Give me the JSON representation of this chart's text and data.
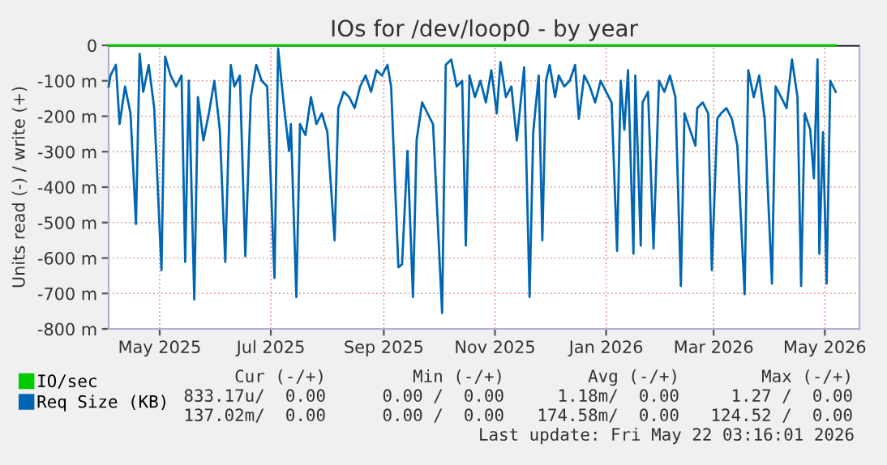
{
  "chart_data": {
    "type": "line",
    "title": "IOs for /dev/loop0 - by year",
    "ylabel": "Units read (-) / write (+)",
    "xlim": [
      "2025-04-03",
      "2026-05-20"
    ],
    "xticks": [
      {
        "value": "2025-05-01",
        "label": "May 2025"
      },
      {
        "value": "2025-07-01",
        "label": "Jul 2025"
      },
      {
        "value": "2025-09-01",
        "label": "Sep 2025"
      },
      {
        "value": "2025-11-01",
        "label": "Nov 2025"
      },
      {
        "value": "2026-01-01",
        "label": "Jan 2026"
      },
      {
        "value": "2026-03-01",
        "label": "Mar 2026"
      },
      {
        "value": "2026-05-01",
        "label": "May 2026"
      }
    ],
    "ylim": [
      -800,
      0
    ],
    "yticks": [
      0,
      {
        "value": -100,
        "label": "-100 m"
      },
      {
        "value": -200,
        "label": "-200 m"
      },
      {
        "value": -300,
        "label": "-300 m"
      },
      {
        "value": -400,
        "label": "-400 m"
      },
      {
        "value": -500,
        "label": "-500 m"
      },
      {
        "value": -600,
        "label": "-600 m"
      },
      {
        "value": -700,
        "label": "-700 m"
      },
      {
        "value": -800,
        "label": "-800 m"
      }
    ],
    "grid": true,
    "legend": "bottom",
    "marker": "none",
    "line_style": "solid",
    "ref_lines": [
      {
        "axis": "y",
        "value": 0,
        "color": "#000000"
      }
    ],
    "series": [
      {
        "name": "IO/sec",
        "color": "#00cc00",
        "x": [
          "2025-04-03",
          "2026-05-07"
        ],
        "values": [
          0,
          0
        ]
      },
      {
        "name": "Req Size (KB)",
        "color": "#0066b3",
        "x": [
          "2025-04-03",
          "2025-04-04",
          "2025-04-07",
          "2025-04-09",
          "2025-04-12",
          "2025-04-15",
          "2025-04-18",
          "2025-04-20",
          "2025-04-22",
          "2025-04-25",
          "2025-04-28",
          "2025-05-02",
          "2025-05-04",
          "2025-05-07",
          "2025-05-10",
          "2025-05-13",
          "2025-05-15",
          "2025-05-17",
          "2025-05-20",
          "2025-05-22",
          "2025-05-25",
          "2025-05-28",
          "2025-05-31",
          "2025-06-03",
          "2025-06-06",
          "2025-06-09",
          "2025-06-11",
          "2025-06-14",
          "2025-06-17",
          "2025-06-20",
          "2025-06-23",
          "2025-06-26",
          "2025-06-29",
          "2025-07-03",
          "2025-07-05",
          "2025-07-08",
          "2025-07-11",
          "2025-07-12",
          "2025-07-15",
          "2025-07-17",
          "2025-07-20",
          "2025-07-23",
          "2025-07-26",
          "2025-07-29",
          "2025-08-01",
          "2025-08-05",
          "2025-08-07",
          "2025-08-10",
          "2025-08-13",
          "2025-08-16",
          "2025-08-19",
          "2025-08-22",
          "2025-08-25",
          "2025-08-28",
          "2025-08-31",
          "2025-09-03",
          "2025-09-05",
          "2025-09-09",
          "2025-09-11",
          "2025-09-14",
          "2025-09-17",
          "2025-09-19",
          "2025-09-22",
          "2025-09-25",
          "2025-09-28",
          "2025-10-03",
          "2025-10-05",
          "2025-10-08",
          "2025-10-11",
          "2025-10-14",
          "2025-10-16",
          "2025-10-18",
          "2025-10-21",
          "2025-10-24",
          "2025-10-27",
          "2025-10-30",
          "2025-11-02",
          "2025-11-04",
          "2025-11-07",
          "2025-11-10",
          "2025-11-13",
          "2025-11-17",
          "2025-11-20",
          "2025-11-22",
          "2025-11-25",
          "2025-11-27",
          "2025-11-29",
          "2025-12-01",
          "2025-12-04",
          "2025-12-06",
          "2025-12-09",
          "2025-12-12",
          "2025-12-15",
          "2025-12-17",
          "2025-12-20",
          "2025-12-23",
          "2025-12-26",
          "2025-12-29",
          "2026-01-01",
          "2026-01-04",
          "2026-01-07",
          "2026-01-09",
          "2026-01-11",
          "2026-01-13",
          "2026-01-16",
          "2026-01-17",
          "2026-01-20",
          "2026-01-21",
          "2026-01-24",
          "2026-01-27",
          "2026-01-30",
          "2026-02-02",
          "2026-02-05",
          "2026-02-08",
          "2026-02-11",
          "2026-02-13",
          "2026-02-16",
          "2026-02-19",
          "2026-02-20",
          "2026-02-23",
          "2026-02-26",
          "2026-02-28",
          "2026-03-03",
          "2026-03-05",
          "2026-03-08",
          "2026-03-11",
          "2026-03-14",
          "2026-03-18",
          "2026-03-20",
          "2026-03-23",
          "2026-03-26",
          "2026-03-29",
          "2026-04-02",
          "2026-04-04",
          "2026-04-07",
          "2026-04-10",
          "2026-04-13",
          "2026-04-16",
          "2026-04-18",
          "2026-04-20",
          "2026-04-23",
          "2026-04-25",
          "2026-04-27",
          "2026-04-28",
          "2026-04-30",
          "2026-05-02",
          "2026-05-04",
          "2026-05-07"
        ],
        "values": [
          -116,
          -85,
          -55,
          -222,
          -116,
          -192,
          -504,
          -24,
          -131,
          -55,
          -177,
          -634,
          -32,
          -85,
          -116,
          -85,
          -611,
          -100,
          -717,
          -146,
          -268,
          -192,
          -100,
          -238,
          -611,
          -55,
          -116,
          -85,
          -595,
          -146,
          -55,
          -100,
          -116,
          -656,
          -9,
          -161,
          -298,
          -222,
          -710,
          -222,
          -253,
          -146,
          -222,
          -192,
          -245,
          -550,
          -177,
          -131,
          -146,
          -177,
          -116,
          -85,
          -131,
          -70,
          -85,
          -55,
          -116,
          -626,
          -618,
          -298,
          -710,
          -268,
          -161,
          -192,
          -222,
          -755,
          -55,
          -40,
          -116,
          -100,
          -565,
          -85,
          -146,
          -100,
          -161,
          -70,
          -192,
          -47,
          -146,
          -116,
          -268,
          -62,
          -710,
          -245,
          -85,
          -550,
          -100,
          -55,
          -146,
          -85,
          -116,
          -100,
          -55,
          -207,
          -85,
          -116,
          -161,
          -100,
          -131,
          -161,
          -580,
          -100,
          -238,
          -70,
          -588,
          -85,
          -565,
          -161,
          -131,
          -573,
          -100,
          -131,
          -85,
          -146,
          -679,
          -192,
          -238,
          -283,
          -177,
          -161,
          -192,
          -634,
          -207,
          -192,
          -177,
          -207,
          -283,
          -702,
          -70,
          -146,
          -85,
          -207,
          -672,
          -116,
          -146,
          -177,
          -40,
          -146,
          -679,
          -192,
          -238,
          -375,
          -40,
          -588,
          -245,
          -672,
          -100,
          -131
        ]
      }
    ],
    "annotations": [
      "Cur (-/+)",
      "Min (-/+)",
      "Avg (-/+)",
      "Max (-/+)",
      "833.17u/  0.00",
      "0.00 /  0.00",
      "1.18m/  0.00",
      "1.27 /  0.00",
      "137.02m/  0.00",
      "0.00 /  0.00",
      "174.58m/  0.00",
      "124.52 /  0.00",
      "Last update: Fri May 22 03:16:01 2026"
    ]
  }
}
